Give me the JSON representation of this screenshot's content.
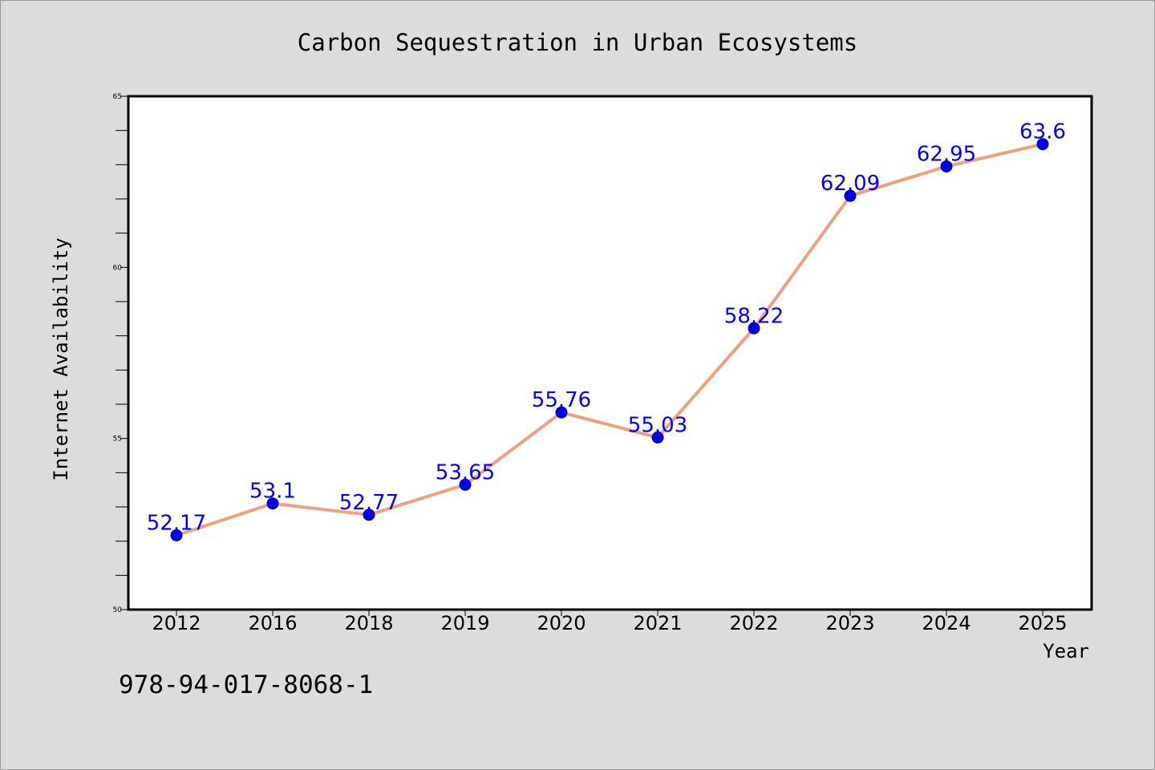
{
  "chart_data": {
    "type": "line",
    "title": "Carbon Sequestration in Urban Ecosystems",
    "xlabel": "Year",
    "ylabel": "Internet Availability",
    "categories": [
      "2012",
      "2016",
      "2018",
      "2019",
      "2020",
      "2021",
      "2022",
      "2023",
      "2024",
      "2025"
    ],
    "series": [
      {
        "values": [
          52.17,
          53.1,
          52.77,
          53.65,
          55.76,
          55.03,
          58.22,
          62.09,
          62.95,
          63.6
        ]
      }
    ],
    "data_labels": [
      "52.17",
      "53.1",
      "52.77",
      "53.65",
      "55.76",
      "55.03",
      "58.22",
      "62.09",
      "62.95",
      "63.6"
    ],
    "ylim": [
      50,
      65
    ],
    "y_ticks": [
      "50",
      "55",
      "60",
      "65"
    ],
    "grid": false,
    "colors": {
      "line": "#f4a07a",
      "marker": "#0000ee",
      "marker_edge": "#00008b",
      "label": "#0000ff"
    }
  },
  "annotation": {
    "isbn": "978-94-017-8068-1"
  }
}
